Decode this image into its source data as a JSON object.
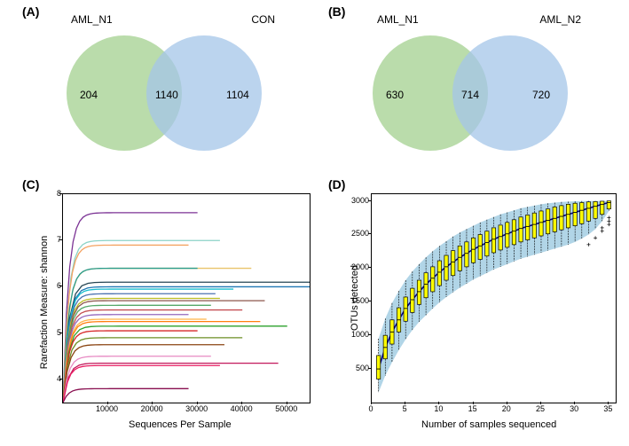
{
  "panelA": {
    "label": "(A)",
    "left_title": "AML_N1",
    "right_title": "CON",
    "left_only": 204,
    "intersection": 1140,
    "right_only": 1104,
    "left_color": "#a3d08f",
    "right_color": "#a4c5e8",
    "circle_diameter": 130
  },
  "panelB": {
    "label": "(B)",
    "left_title": "AML_N1",
    "right_title": "AML_N2",
    "left_only": 630,
    "intersection": 714,
    "right_only": 720,
    "left_color": "#a3d08f",
    "right_color": "#a4c5e8",
    "circle_diameter": 130
  },
  "panelC": {
    "label": "(C)",
    "ylabel": "Rarefaction Measure: shannon",
    "xlabel": "Sequences Per Sample",
    "xlim": [
      0,
      55000
    ],
    "ylim": [
      3.5,
      8
    ],
    "xticks": [
      10000,
      20000,
      30000,
      40000,
      50000
    ],
    "yticks": [
      4,
      5,
      6,
      7,
      8
    ],
    "background": "#ffffff",
    "series": [
      {
        "color": "#7b3294",
        "end_x": 30000,
        "plateau": 7.6
      },
      {
        "color": "#8bd3c7",
        "end_x": 35000,
        "plateau": 7.0
      },
      {
        "color": "#f4a261",
        "end_x": 28000,
        "plateau": 6.9
      },
      {
        "color": "#e9c46a",
        "end_x": 42000,
        "plateau": 6.4
      },
      {
        "color": "#2a9d8f",
        "end_x": 30000,
        "plateau": 6.4
      },
      {
        "color": "#264653",
        "end_x": 56000,
        "plateau": 6.1
      },
      {
        "color": "#1f77b4",
        "end_x": 55000,
        "plateau": 6.0
      },
      {
        "color": "#17becf",
        "end_x": 38000,
        "plateau": 5.95
      },
      {
        "color": "#4c72b0",
        "end_x": 34000,
        "plateau": 5.85
      },
      {
        "color": "#bcbd22",
        "end_x": 35000,
        "plateau": 5.75
      },
      {
        "color": "#8c564b",
        "end_x": 45000,
        "plateau": 5.7
      },
      {
        "color": "#55a868",
        "end_x": 33000,
        "plateau": 5.6
      },
      {
        "color": "#c44e52",
        "end_x": 40000,
        "plateau": 5.5
      },
      {
        "color": "#9467bd",
        "end_x": 28000,
        "plateau": 5.4
      },
      {
        "color": "#ffb347",
        "end_x": 32000,
        "plateau": 5.3
      },
      {
        "color": "#ff7f0e",
        "end_x": 44000,
        "plateau": 5.25
      },
      {
        "color": "#2ca02c",
        "end_x": 50000,
        "plateau": 5.15
      },
      {
        "color": "#d62728",
        "end_x": 30000,
        "plateau": 5.05
      },
      {
        "color": "#6b8e23",
        "end_x": 40000,
        "plateau": 4.9
      },
      {
        "color": "#8b4513",
        "end_x": 36000,
        "plateau": 4.75
      },
      {
        "color": "#e78ac3",
        "end_x": 33000,
        "plateau": 4.5
      },
      {
        "color": "#c2185b",
        "end_x": 48000,
        "plateau": 4.35
      },
      {
        "color": "#e91e63",
        "end_x": 35000,
        "plateau": 4.3
      },
      {
        "color": "#880e4f",
        "end_x": 28000,
        "plateau": 3.8
      }
    ]
  },
  "panelD": {
    "label": "(D)",
    "ylabel": "OTUs detected",
    "xlabel": "Number of samples sequenced",
    "xlim": [
      0,
      36
    ],
    "ylim": [
      0,
      3100
    ],
    "xticks": [
      0,
      5,
      10,
      15,
      20,
      25,
      30,
      35
    ],
    "yticks": [
      500,
      1000,
      1500,
      2000,
      2500,
      3000
    ],
    "background": "#ffffff",
    "shade_color": "#9ecae1",
    "box_fill": "#ffff00",
    "box_border": "#000000",
    "line_color": "#000080",
    "n_boxes": 35,
    "medians": [
      500,
      820,
      1050,
      1230,
      1400,
      1530,
      1650,
      1760,
      1850,
      1940,
      2020,
      2090,
      2160,
      2220,
      2280,
      2330,
      2380,
      2430,
      2470,
      2510,
      2550,
      2590,
      2620,
      2650,
      2680,
      2710,
      2740,
      2770,
      2800,
      2830,
      2860,
      2890,
      2920,
      2950,
      2975
    ],
    "q1": [
      350,
      650,
      870,
      1050,
      1210,
      1340,
      1460,
      1560,
      1650,
      1740,
      1820,
      1890,
      1960,
      2020,
      2080,
      2130,
      2180,
      2230,
      2270,
      2310,
      2350,
      2390,
      2420,
      2450,
      2480,
      2510,
      2540,
      2570,
      2600,
      2630,
      2660,
      2700,
      2740,
      2800,
      2880
    ],
    "q3": [
      700,
      1000,
      1230,
      1410,
      1570,
      1700,
      1820,
      1930,
      2020,
      2110,
      2190,
      2260,
      2330,
      2390,
      2450,
      2500,
      2550,
      2600,
      2640,
      2680,
      2720,
      2760,
      2790,
      2820,
      2850,
      2880,
      2910,
      2930,
      2950,
      2965,
      2975,
      2985,
      2990,
      2995,
      3000
    ],
    "whisker_lo": [
      150,
      400,
      600,
      780,
      940,
      1080,
      1200,
      1300,
      1400,
      1490,
      1570,
      1640,
      1710,
      1770,
      1830,
      1880,
      1930,
      1980,
      2020,
      2060,
      2100,
      2140,
      2170,
      2200,
      2230,
      2260,
      2290,
      2320,
      2350,
      2390,
      2440,
      2500,
      2580,
      2700,
      2850
    ],
    "whisker_hi": [
      950,
      1250,
      1480,
      1660,
      1820,
      1950,
      2060,
      2160,
      2250,
      2330,
      2400,
      2470,
      2530,
      2580,
      2630,
      2680,
      2720,
      2760,
      2800,
      2830,
      2860,
      2890,
      2910,
      2930,
      2950,
      2965,
      2975,
      2985,
      2990,
      2995,
      2998,
      3000,
      3000,
      3000,
      3000
    ],
    "outliers": [
      [
        32,
        2350
      ],
      [
        33,
        2450
      ],
      [
        34,
        2550
      ],
      [
        34,
        2600
      ],
      [
        35,
        2650
      ],
      [
        35,
        2700
      ],
      [
        35,
        2750
      ]
    ]
  }
}
